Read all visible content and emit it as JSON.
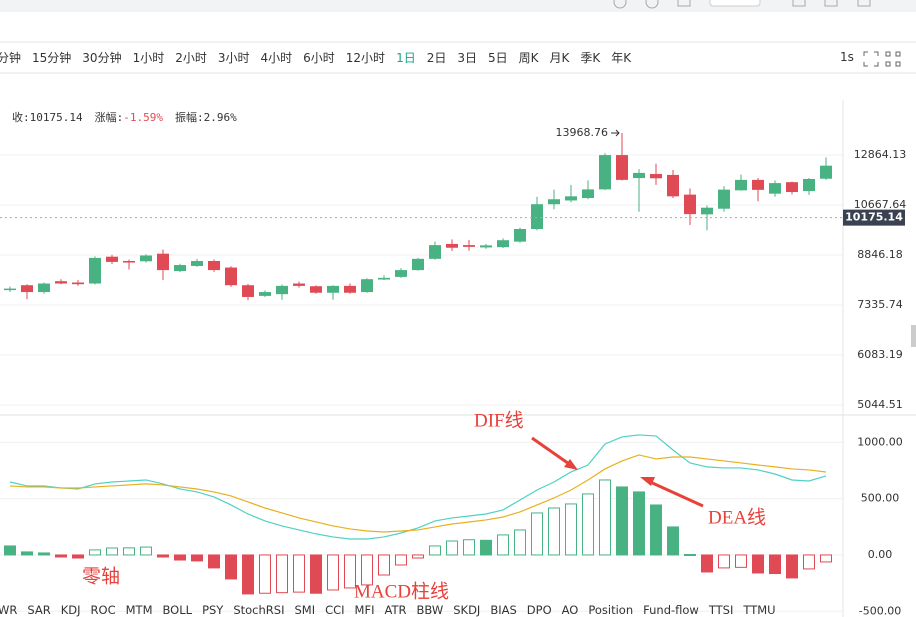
{
  "toolbar": {
    "intervals": [
      "分钟",
      "15分钟",
      "30分钟",
      "1小时",
      "2小时",
      "3小时",
      "4小时",
      "6小时",
      "12小时",
      "1日",
      "2日",
      "3日",
      "5日",
      "周K",
      "月K",
      "季K",
      "年K"
    ],
    "active": 9,
    "speed": "1s"
  },
  "info": [
    {
      "label": "收:",
      "value": "10175.14"
    },
    {
      "label": "涨幅:",
      "value": "-1.59%",
      "color": "#e04a55"
    },
    {
      "label": "振幅:",
      "value": "2.96%"
    }
  ],
  "indicators": [
    "WR",
    "SAR",
    "KDJ",
    "ROC",
    "MTM",
    "BOLL",
    "PSY",
    "StochRSI",
    "SMI",
    "CCI",
    "MFI",
    "ATR",
    "BBW",
    "SKDJ",
    "BIAS",
    "DPO",
    "AO",
    "Position",
    "Fund-flow",
    "TTSI",
    "TTMU"
  ],
  "chart_data": [
    {
      "type": "candlestick",
      "log_scale": true,
      "grid": true,
      "up_color": "#48b283",
      "down_color": "#e04a55",
      "ylim": [
        4859,
        15513
      ],
      "yticks": [
        5044.51,
        6083.19,
        7335.74,
        8846.18,
        10667.64,
        12864.13
      ],
      "open": [
        7780,
        7900,
        7700,
        8020,
        7980,
        7950,
        8790,
        8650,
        8640,
        8890,
        8330,
        8490,
        8650,
        8440,
        7900,
        7590,
        7640,
        7950,
        7870,
        7680,
        7880,
        7700,
        8070,
        8150,
        8360,
        8720,
        9220,
        9180,
        9100,
        9110,
        9300,
        9750,
        10700,
        10850,
        10950,
        11310,
        12860,
        11800,
        11980,
        11940,
        11090,
        10300,
        10520,
        11270,
        11720,
        11130,
        11620,
        11240,
        11770
      ],
      "high": [
        7860,
        7930,
        7980,
        8080,
        8050,
        8800,
        8850,
        8700,
        8870,
        9030,
        8560,
        8720,
        8700,
        8480,
        7940,
        7750,
        7920,
        8010,
        7900,
        7900,
        7950,
        8110,
        8200,
        8420,
        8750,
        9300,
        9380,
        9360,
        9220,
        9420,
        9800,
        11000,
        11300,
        11500,
        11700,
        12950,
        13968.76,
        12200,
        12450,
        12160,
        11350,
        10650,
        11450,
        11950,
        11800,
        11700,
        11650,
        11800,
        12750
      ],
      "low": [
        7700,
        7500,
        7650,
        7930,
        7880,
        7920,
        8550,
        8380,
        8600,
        8050,
        8300,
        8460,
        8310,
        7850,
        7470,
        7560,
        7480,
        7830,
        7650,
        7480,
        7650,
        7680,
        8050,
        8120,
        8340,
        8690,
        8980,
        8990,
        9050,
        9080,
        9260,
        9700,
        10500,
        10780,
        10900,
        11280,
        11690,
        10400,
        11500,
        10950,
        9900,
        9700,
        10400,
        11250,
        10820,
        11000,
        11100,
        11080,
        11720
      ],
      "close": [
        7800,
        7700,
        7950,
        7950,
        7930,
        8750,
        8620,
        8600,
        8830,
        8360,
        8520,
        8650,
        8360,
        7900,
        7560,
        7700,
        7880,
        7880,
        7680,
        7880,
        7680,
        8080,
        8120,
        8360,
        8720,
        9180,
        9090,
        9120,
        9170,
        9350,
        9750,
        10700,
        10900,
        11020,
        11310,
        12860,
        11720,
        12030,
        11790,
        11020,
        10310,
        10560,
        11300,
        11720,
        11290,
        11580,
        11200,
        11760,
        12360
      ],
      "last_price": 10175.14
    },
    {
      "type": "macd",
      "ylim": [
        -551,
        1243
      ],
      "grid": true,
      "yticks": [
        {
          "value": -500,
          "label": "-500.00"
        },
        {
          "value": 0,
          "label": "0.00"
        },
        {
          "value": 500,
          "label": "500.00"
        },
        {
          "value": 1000,
          "label": "1000.00"
        }
      ],
      "series": [
        {
          "name": "DIF线",
          "color": "#4fd1c5",
          "values": [
            648,
            613,
            613,
            595,
            586,
            631,
            648,
            657,
            666,
            631,
            586,
            560,
            515,
            444,
            364,
            302,
            258,
            222,
            187,
            160,
            142,
            142,
            160,
            195,
            240,
            302,
            329,
            346,
            364,
            400,
            488,
            577,
            648,
            737,
            799,
            986,
            1048,
            1066,
            1057,
            932,
            817,
            782,
            773,
            773,
            755,
            719,
            666,
            657,
            702
          ]
        },
        {
          "name": "DEA线",
          "color": "#e8b020",
          "values": [
            613,
            604,
            604,
            595,
            595,
            604,
            613,
            622,
            631,
            622,
            604,
            586,
            560,
            524,
            471,
            417,
            373,
            329,
            293,
            258,
            231,
            213,
            204,
            213,
            222,
            249,
            275,
            293,
            311,
            337,
            382,
            444,
            506,
            577,
            666,
            764,
            835,
            888,
            853,
            870,
            870,
            853,
            835,
            817,
            799,
            782,
            764,
            755,
            737
          ]
        }
      ],
      "histogram": {
        "name": "MACD柱线",
        "up_color": "#48b283",
        "down_color": "#e04a55",
        "values": [
          80,
          27,
          18,
          -18,
          -27,
          45,
          62,
          63,
          70,
          -18,
          -45,
          -53,
          -115,
          -213,
          -346,
          -340,
          -335,
          -330,
          -340,
          -311,
          -293,
          -266,
          -178,
          -89,
          -27,
          80,
          124,
          135,
          130,
          178,
          222,
          373,
          417,
          453,
          542,
          666,
          604,
          560,
          444,
          249,
          4,
          -151,
          -115,
          -110,
          -160,
          -165,
          -204,
          -124,
          -62
        ]
      },
      "zero_label": "零轴"
    }
  ]
}
